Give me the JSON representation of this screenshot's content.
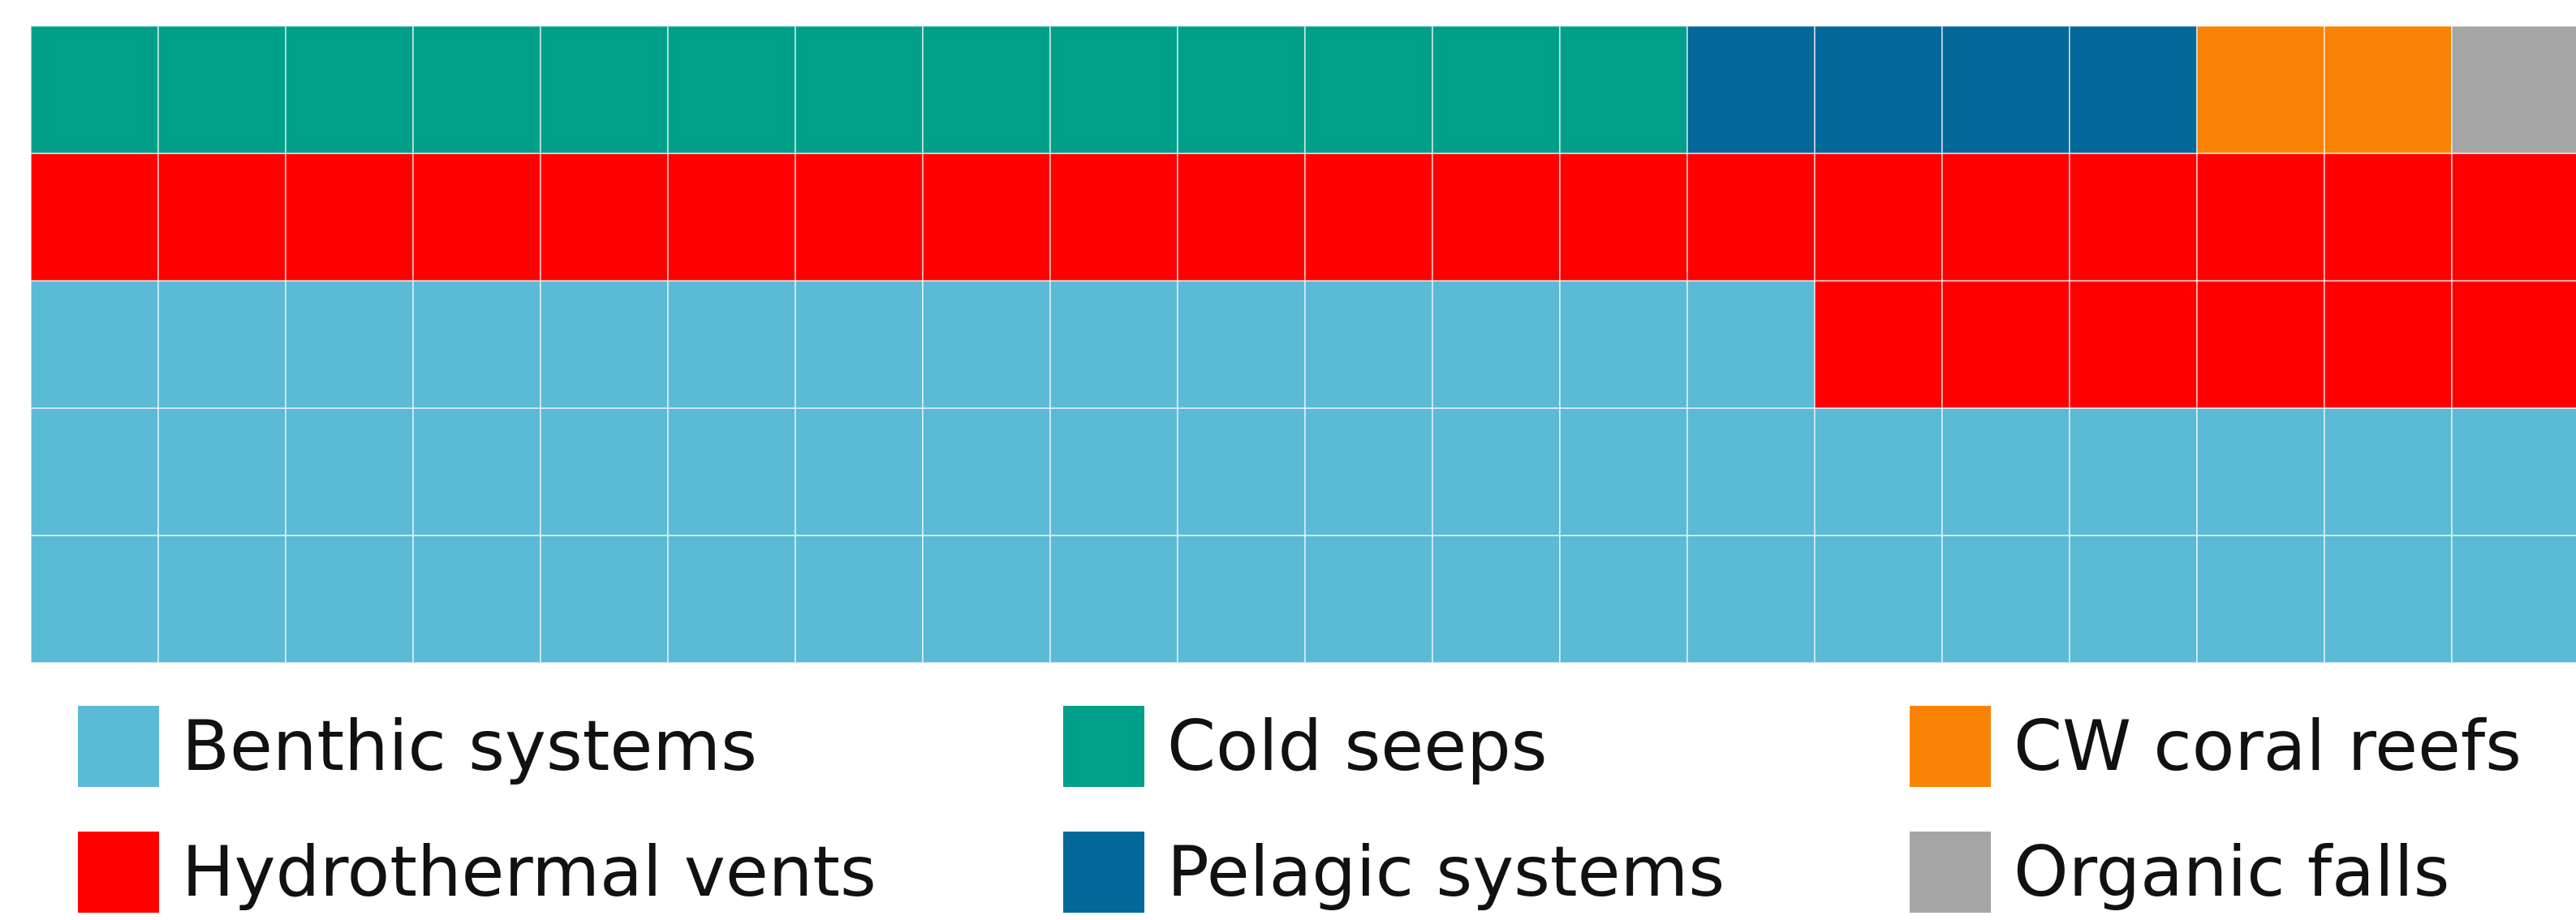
{
  "chart_data": {
    "type": "waffle",
    "grid": {
      "rows": 5,
      "columns": 20,
      "fill_order": "bottom-left, left-to-right, upward",
      "total_cells": 100
    },
    "categories": [
      "Benthic systems",
      "Hydrothermal vents",
      "Cold seeps",
      "Pelagic systems",
      "CW coral reefs",
      "Organic falls"
    ],
    "values": [
      54,
      26,
      13,
      4,
      2,
      1
    ],
    "colors": [
      "#5bbad5",
      "#ff0000",
      "#009f8a",
      "#04699a",
      "#fa8205",
      "#a5a5a5"
    ],
    "legend": {
      "placement": "bottom",
      "items": [
        {
          "label": "Benthic systems",
          "color": "#5bbad5",
          "category_index": 0
        },
        {
          "label": "Cold seeps",
          "color": "#009f8a",
          "category_index": 2
        },
        {
          "label": "CW coral reefs",
          "color": "#fa8205",
          "category_index": 4
        },
        {
          "label": "Hydrothermal vents",
          "color": "#ff0000",
          "category_index": 1
        },
        {
          "label": "Pelagic systems",
          "color": "#04699a",
          "category_index": 3
        },
        {
          "label": "Organic falls",
          "color": "#a5a5a5",
          "category_index": 5
        }
      ]
    }
  }
}
